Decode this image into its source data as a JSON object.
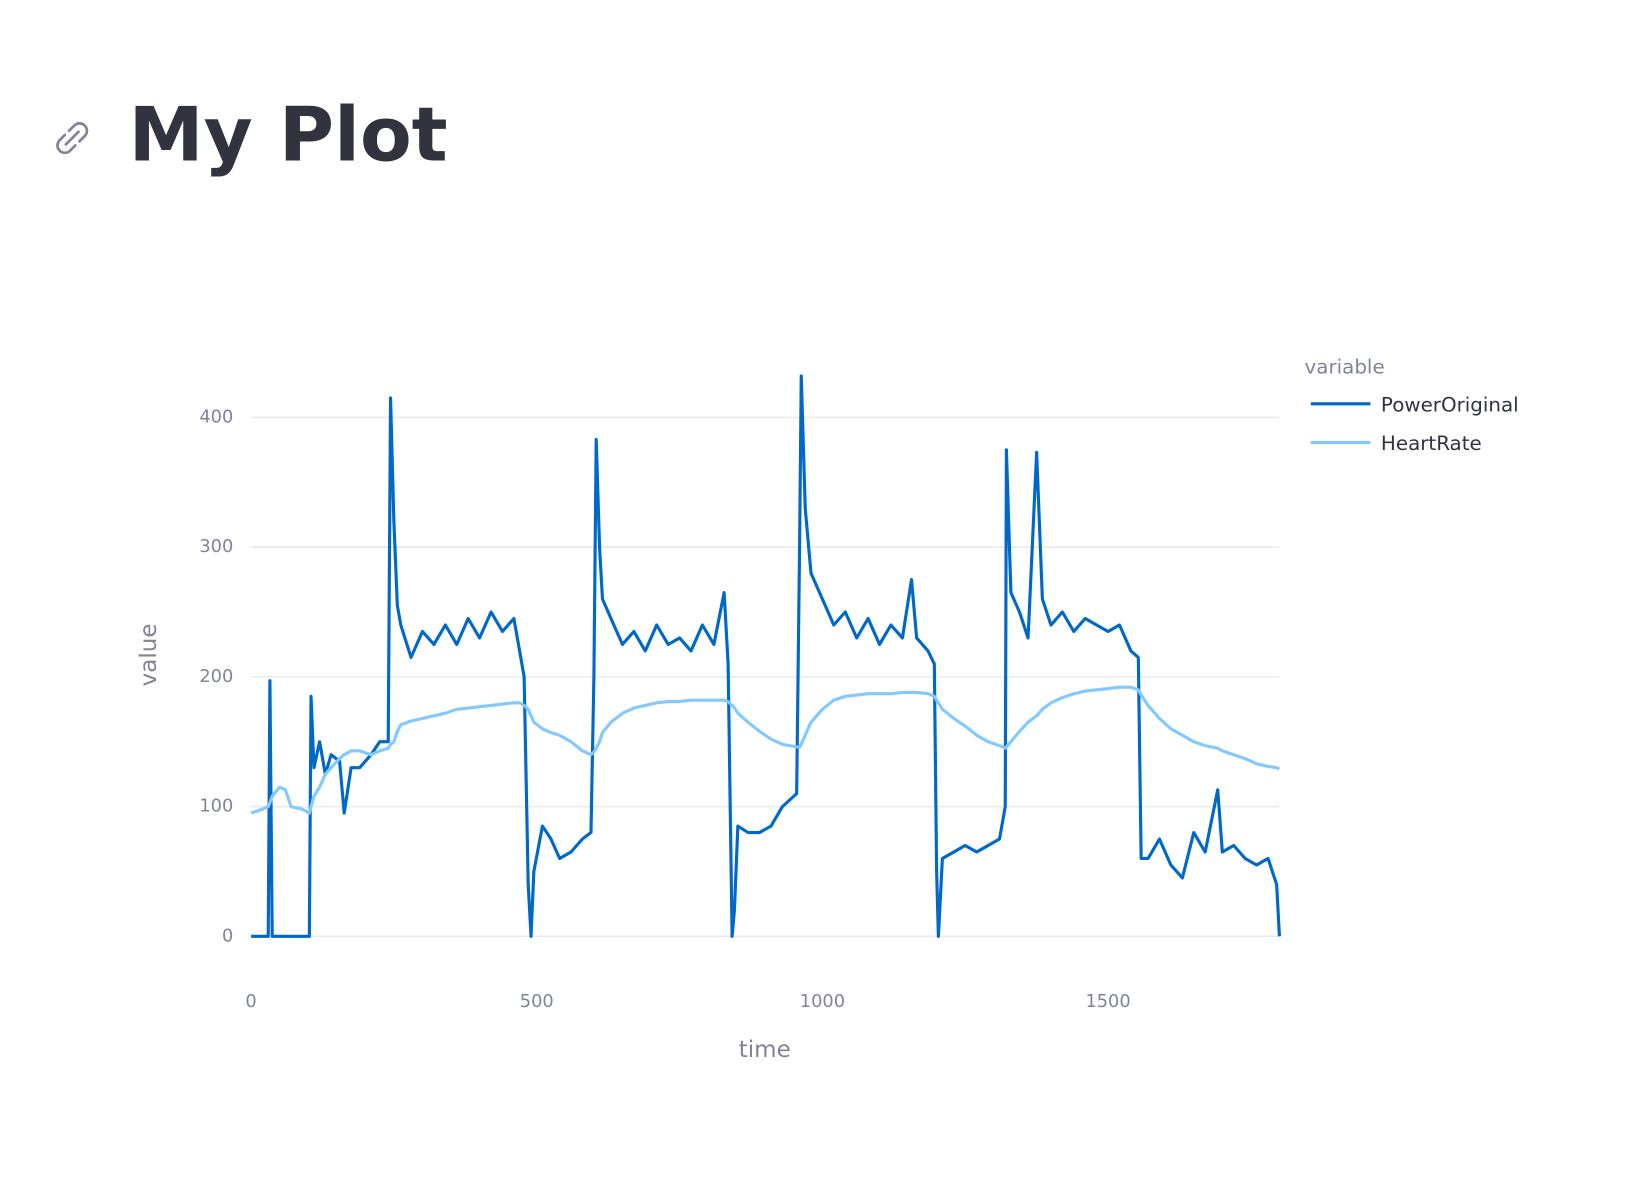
{
  "chart_data": {
    "type": "line",
    "title": "My Plot",
    "x_label": "time",
    "y_label": "value",
    "legend_title": "variable",
    "legend_position": "right",
    "grid": true,
    "xlim": [
      0,
      1800
    ],
    "ylim": [
      0,
      435
    ],
    "xticks": [
      0,
      500,
      1000,
      1500
    ],
    "yticks": [
      0,
      100,
      200,
      300,
      400
    ],
    "x": [
      0,
      20,
      30,
      33,
      37,
      50,
      60,
      70,
      90,
      102,
      105,
      110,
      120,
      130,
      140,
      155,
      163,
      175,
      190,
      210,
      225,
      240,
      244,
      250,
      256,
      262,
      280,
      300,
      320,
      340,
      360,
      380,
      400,
      420,
      440,
      460,
      470,
      478,
      485,
      490,
      495,
      510,
      525,
      540,
      560,
      580,
      595,
      600,
      604,
      610,
      615,
      630,
      650,
      670,
      690,
      710,
      730,
      750,
      770,
      790,
      810,
      828,
      835,
      842,
      846,
      852,
      870,
      890,
      910,
      930,
      955,
      960,
      963,
      970,
      980,
      1000,
      1020,
      1040,
      1060,
      1080,
      1100,
      1120,
      1140,
      1156,
      1165,
      1185,
      1196,
      1200,
      1203,
      1210,
      1230,
      1250,
      1270,
      1290,
      1310,
      1320,
      1322,
      1330,
      1345,
      1360,
      1375,
      1385,
      1400,
      1420,
      1440,
      1460,
      1480,
      1500,
      1520,
      1540,
      1553,
      1558,
      1570,
      1590,
      1610,
      1630,
      1650,
      1670,
      1692,
      1700,
      1720,
      1740,
      1760,
      1780,
      1795,
      1800
    ],
    "series": [
      {
        "name": "PowerOriginal",
        "color": "#0068c9",
        "values": [
          0,
          0,
          0,
          197,
          0,
          0,
          0,
          0,
          0,
          0,
          185,
          130,
          150,
          125,
          140,
          135,
          95,
          130,
          130,
          140,
          150,
          150,
          415,
          320,
          255,
          240,
          215,
          235,
          225,
          240,
          225,
          245,
          230,
          250,
          235,
          245,
          220,
          200,
          40,
          0,
          50,
          85,
          75,
          60,
          65,
          75,
          80,
          200,
          383,
          300,
          260,
          245,
          225,
          235,
          220,
          240,
          225,
          230,
          220,
          240,
          225,
          265,
          210,
          0,
          20,
          85,
          80,
          80,
          85,
          100,
          110,
          300,
          432,
          330,
          280,
          260,
          240,
          250,
          230,
          245,
          225,
          240,
          230,
          275,
          230,
          220,
          210,
          50,
          0,
          60,
          65,
          70,
          65,
          70,
          75,
          100,
          375,
          265,
          250,
          230,
          373,
          260,
          240,
          250,
          235,
          245,
          240,
          235,
          240,
          220,
          215,
          60,
          60,
          75,
          55,
          45,
          80,
          65,
          113,
          65,
          70,
          60,
          55,
          60,
          40,
          0
        ]
      },
      {
        "name": "HeartRate",
        "color": "#83c9ff",
        "values": [
          95,
          98,
          100,
          103,
          108,
          115,
          113,
          100,
          98,
          95,
          100,
          108,
          115,
          125,
          130,
          137,
          140,
          143,
          143,
          140,
          143,
          145,
          148,
          150,
          158,
          163,
          166,
          168,
          170,
          172,
          175,
          176,
          177,
          178,
          179,
          180,
          180,
          178,
          175,
          170,
          165,
          160,
          157,
          155,
          150,
          143,
          140,
          142,
          145,
          150,
          157,
          165,
          172,
          176,
          178,
          180,
          181,
          181,
          182,
          182,
          182,
          182,
          181,
          178,
          176,
          172,
          165,
          158,
          152,
          148,
          146,
          146,
          148,
          155,
          165,
          175,
          182,
          185,
          186,
          187,
          187,
          187,
          188,
          188,
          188,
          187,
          185,
          182,
          180,
          175,
          168,
          162,
          155,
          150,
          147,
          145,
          146,
          150,
          158,
          165,
          170,
          175,
          180,
          184,
          187,
          189,
          190,
          191,
          192,
          192,
          190,
          186,
          178,
          168,
          160,
          155,
          150,
          147,
          145,
          143,
          140,
          137,
          133,
          131,
          130,
          129
        ]
      }
    ]
  }
}
